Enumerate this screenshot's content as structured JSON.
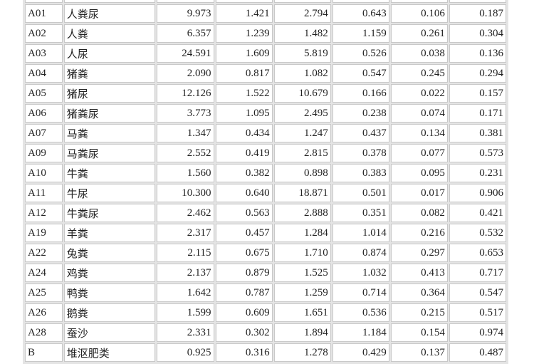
{
  "table": {
    "rows": [
      {
        "code": "",
        "name": "",
        "values": [
          "",
          "",
          "",
          "",
          "",
          ""
        ]
      },
      {
        "code": "A01",
        "name": "人粪尿",
        "values": [
          "9.973",
          "1.421",
          "2.794",
          "0.643",
          "0.106",
          "0.187"
        ]
      },
      {
        "code": "A02",
        "name": "人粪",
        "values": [
          "6.357",
          "1.239",
          "1.482",
          "1.159",
          "0.261",
          "0.304"
        ]
      },
      {
        "code": "A03",
        "name": "人尿",
        "values": [
          "24.591",
          "1.609",
          "5.819",
          "0.526",
          "0.038",
          "0.136"
        ]
      },
      {
        "code": "A04",
        "name": "猪粪",
        "values": [
          "2.090",
          "0.817",
          "1.082",
          "0.547",
          "0.245",
          "0.294"
        ]
      },
      {
        "code": "A05",
        "name": "猪尿",
        "values": [
          "12.126",
          "1.522",
          "10.679",
          "0.166",
          "0.022",
          "0.157"
        ]
      },
      {
        "code": "A06",
        "name": "猪粪尿",
        "values": [
          "3.773",
          "1.095",
          "2.495",
          "0.238",
          "0.074",
          "0.171"
        ]
      },
      {
        "code": "A07",
        "name": "马粪",
        "values": [
          "1.347",
          "0.434",
          "1.247",
          "0.437",
          "0.134",
          "0.381"
        ]
      },
      {
        "code": "A09",
        "name": "马粪尿",
        "values": [
          "2.552",
          "0.419",
          "2.815",
          "0.378",
          "0.077",
          "0.573"
        ]
      },
      {
        "code": "A10",
        "name": "牛粪",
        "values": [
          "1.560",
          "0.382",
          "0.898",
          "0.383",
          "0.095",
          "0.231"
        ]
      },
      {
        "code": "A11",
        "name": "牛尿",
        "values": [
          "10.300",
          "0.640",
          "18.871",
          "0.501",
          "0.017",
          "0.906"
        ]
      },
      {
        "code": "A12",
        "name": "牛粪尿",
        "values": [
          "2.462",
          "0.563",
          "2.888",
          "0.351",
          "0.082",
          "0.421"
        ]
      },
      {
        "code": "A19",
        "name": "羊粪",
        "values": [
          "2.317",
          "0.457",
          "1.284",
          "1.014",
          "0.216",
          "0.532"
        ]
      },
      {
        "code": "A22",
        "name": "兔粪",
        "values": [
          "2.115",
          "0.675",
          "1.710",
          "0.874",
          "0.297",
          "0.653"
        ]
      },
      {
        "code": "A24",
        "name": "鸡粪",
        "values": [
          "2.137",
          "0.879",
          "1.525",
          "1.032",
          "0.413",
          "0.717"
        ]
      },
      {
        "code": "A25",
        "name": "鸭粪",
        "values": [
          "1.642",
          "0.787",
          "1.259",
          "0.714",
          "0.364",
          "0.547"
        ]
      },
      {
        "code": "A26",
        "name": "鹅粪",
        "values": [
          "1.599",
          "0.609",
          "1.651",
          "0.536",
          "0.215",
          "0.517"
        ]
      },
      {
        "code": "A28",
        "name": "蚕沙",
        "values": [
          "2.331",
          "0.302",
          "1.894",
          "1.184",
          "0.154",
          "0.974"
        ]
      },
      {
        "code": "B",
        "name": "堆沤肥类",
        "values": [
          "0.925",
          "0.316",
          "1.278",
          "0.429",
          "0.137",
          "0.487"
        ]
      }
    ]
  }
}
